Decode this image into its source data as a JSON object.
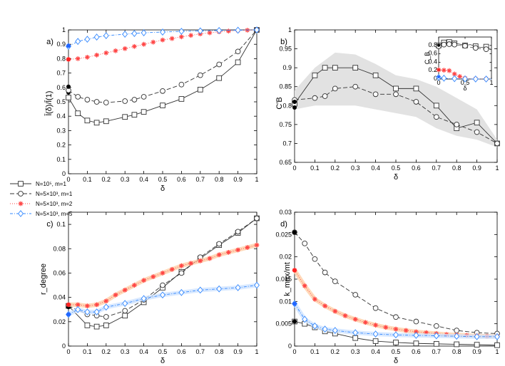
{
  "legend": [
    {
      "label": "N=10⁵, m=1",
      "color": "#333333",
      "dash": "",
      "marker": "square"
    },
    {
      "label": "N=5×10³, m=1",
      "color": "#333333",
      "dash": "6,3",
      "marker": "circle"
    },
    {
      "label": "N=5×10³, m=2",
      "color": "#ff4444",
      "dash": "1,2",
      "marker": "star"
    },
    {
      "label": "N=5×10³, m=5",
      "color": "#3388ff",
      "dash": "4,2,1,2",
      "marker": "diamond"
    }
  ],
  "chart_data": [
    {
      "type": "line",
      "panel_label": "a)",
      "xlabel": "δ",
      "ylabel": "l̄(δ)/l̄(1)",
      "xlim": [
        0,
        1
      ],
      "ylim": [
        0,
        1
      ],
      "xticks": [
        0,
        0.1,
        0.2,
        0.3,
        0.4,
        0.5,
        0.6,
        0.7,
        0.8,
        0.9,
        1
      ],
      "xticklabels": [
        "0",
        "0.1",
        "0.2",
        "0.3",
        "0.4",
        "0.5",
        "0.6",
        "0.7",
        "0.8",
        "0.9",
        "1"
      ],
      "yticks": [
        0,
        0.1,
        0.2,
        0.3,
        0.4,
        0.5,
        0.6,
        0.7,
        0.8,
        0.9,
        1
      ],
      "yticklabels": [
        "0",
        "0.1",
        "0.2",
        "0.3",
        "0.4",
        "0.5",
        "0.6",
        "0.7",
        "0.8",
        "0.9",
        "1"
      ],
      "series": [
        {
          "x": [
            0,
            0.05,
            0.1,
            0.15,
            0.2,
            0.3,
            0.35,
            0.4,
            0.5,
            0.6,
            0.7,
            0.8,
            0.9,
            1
          ],
          "y": [
            0.53,
            0.42,
            0.37,
            0.355,
            0.365,
            0.395,
            0.41,
            0.43,
            0.475,
            0.52,
            0.585,
            0.665,
            0.775,
            1.0
          ],
          "dots": [
            0.565
          ]
        },
        {
          "x": [
            0,
            0.05,
            0.1,
            0.15,
            0.2,
            0.3,
            0.35,
            0.4,
            0.5,
            0.6,
            0.7,
            0.8,
            0.9,
            1
          ],
          "y": [
            0.58,
            0.535,
            0.515,
            0.5,
            0.495,
            0.505,
            0.515,
            0.535,
            0.575,
            0.62,
            0.685,
            0.76,
            0.85,
            1.0
          ],
          "dots": [
            0.605
          ]
        },
        {
          "x": [
            0,
            0.05,
            0.1,
            0.15,
            0.2,
            0.25,
            0.3,
            0.35,
            0.4,
            0.45,
            0.5,
            0.55,
            0.6,
            0.65,
            0.7,
            0.75,
            0.8,
            0.85,
            0.9,
            0.95,
            1
          ],
          "y": [
            0.795,
            0.8,
            0.81,
            0.825,
            0.84,
            0.855,
            0.87,
            0.885,
            0.9,
            0.915,
            0.93,
            0.94,
            0.952,
            0.962,
            0.972,
            0.98,
            0.987,
            0.992,
            0.996,
            0.998,
            1.0
          ],
          "dots": [
            0.795
          ]
        },
        {
          "x": [
            0,
            0.05,
            0.1,
            0.15,
            0.2,
            0.3,
            0.35,
            0.4,
            0.5,
            0.6,
            0.7,
            0.8,
            0.9,
            1
          ],
          "y": [
            0.885,
            0.92,
            0.935,
            0.95,
            0.96,
            0.97,
            0.975,
            0.98,
            0.985,
            0.99,
            0.993,
            0.996,
            0.998,
            1.0
          ],
          "dots": [
            0.89
          ]
        }
      ]
    },
    {
      "type": "line",
      "panel_label": "b)",
      "xlabel": "δ",
      "ylabel": "C′B",
      "xlim": [
        0,
        1
      ],
      "ylim": [
        0.65,
        1
      ],
      "xticks": [
        0,
        0.1,
        0.2,
        0.3,
        0.4,
        0.5,
        0.6,
        0.7,
        0.8,
        0.9,
        1
      ],
      "xticklabels": [
        "0",
        "0.1",
        "0.2",
        "0.3",
        "0.4",
        "0.5",
        "0.6",
        "0.7",
        "0.8",
        "0.9",
        "1"
      ],
      "yticks": [
        0.65,
        0.7,
        0.75,
        0.8,
        0.85,
        0.9,
        0.95,
        1
      ],
      "yticklabels": [
        "0.65",
        "0.7",
        "0.75",
        "0.8",
        "0.85",
        "0.9",
        "0.95",
        "1"
      ],
      "band": {
        "x": [
          0,
          0.1,
          0.2,
          0.3,
          0.4,
          0.5,
          0.6,
          0.7,
          0.8,
          0.9,
          1
        ],
        "upper": [
          0.84,
          0.9,
          0.94,
          0.935,
          0.91,
          0.88,
          0.87,
          0.85,
          0.82,
          0.79,
          0.71
        ],
        "lower": [
          0.79,
          0.8,
          0.8,
          0.8,
          0.79,
          0.78,
          0.77,
          0.74,
          0.72,
          0.71,
          0.69
        ]
      },
      "series": [
        {
          "x": [
            0,
            0.1,
            0.15,
            0.2,
            0.3,
            0.4,
            0.5,
            0.6,
            0.7,
            0.8,
            0.9,
            1
          ],
          "y": [
            0.805,
            0.88,
            0.9,
            0.9,
            0.9,
            0.88,
            0.845,
            0.845,
            0.8,
            0.74,
            0.755,
            0.7
          ],
          "dots": [
            0.795
          ]
        },
        {
          "x": [
            0,
            0.1,
            0.15,
            0.2,
            0.3,
            0.4,
            0.5,
            0.6,
            0.7,
            0.8,
            0.9,
            1
          ],
          "y": [
            0.815,
            0.82,
            0.825,
            0.845,
            0.85,
            0.83,
            0.83,
            0.81,
            0.77,
            0.75,
            0.73,
            0.7
          ],
          "dots": [
            0.81
          ]
        }
      ],
      "inset": {
        "xlabel": "δ",
        "ylabel": "C_B",
        "xlim": [
          0,
          1
        ],
        "ylim": [
          0,
          1
        ],
        "xticks": [
          0,
          0.5,
          1
        ],
        "xticklabels": [
          "0",
          "0.5",
          "1"
        ],
        "yticks": [
          0,
          0.2,
          0.4,
          0.6,
          0.8
        ],
        "yticklabels": [
          "0",
          "0.2",
          "0.4",
          "0.6",
          "0.8"
        ],
        "series": [
          {
            "x": [
              0,
              0.05,
              0.1,
              0.15,
              0.2,
              0.25,
              0.3,
              0.4,
              0.5,
              0.6,
              0.7,
              0.8,
              0.9,
              1
            ],
            "y": [
              0.8,
              0.85,
              0.87,
              0.88,
              0.88,
              0.87,
              0.85,
              0.83,
              0.8,
              0.82,
              0.78,
              0.75,
              0.77,
              0.7
            ],
            "dots": [
              0.78
            ]
          },
          {
            "x": [
              0,
              0.05,
              0.1,
              0.15,
              0.2,
              0.25,
              0.3,
              0.4,
              0.5,
              0.6,
              0.7,
              0.8,
              0.9,
              1
            ],
            "y": [
              0.78,
              0.81,
              0.82,
              0.83,
              0.83,
              0.82,
              0.82,
              0.8,
              0.79,
              0.76,
              0.74,
              0.72,
              0.71,
              0.7
            ],
            "dots": [
              0.8
            ]
          },
          {
            "x": [
              0,
              0.05,
              0.1,
              0.15,
              0.2,
              0.25,
              0.3,
              0.35,
              0.4,
              0.45,
              0.5,
              0.6,
              0.7,
              0.8,
              0.9,
              1
            ],
            "y": [
              0.22,
              0.22,
              0.21,
              0.21,
              0.2,
              0.16,
              0.12,
              0.09,
              0.06,
              0.04,
              0.02,
              0.01,
              0.005,
              0.003,
              0.002,
              0.001
            ],
            "dots": [
              0.22
            ]
          },
          {
            "x": [
              0,
              0.05,
              0.1,
              0.2,
              0.3,
              0.4,
              0.5,
              0.6,
              0.7,
              0.8,
              0.9,
              1
            ],
            "y": [
              0.04,
              0.03,
              0.02,
              0.01,
              0.01,
              0.005,
              0.003,
              0.002,
              0.001,
              0.001,
              0.0,
              0.0
            ],
            "dots": [
              0.05
            ]
          }
        ]
      }
    },
    {
      "type": "line",
      "panel_label": "c)",
      "xlabel": "δ",
      "ylabel": "r_degree",
      "xlim": [
        0,
        1
      ],
      "ylim": [
        0,
        0.11
      ],
      "xticks": [
        0,
        0.1,
        0.2,
        0.3,
        0.4,
        0.5,
        0.6,
        0.7,
        0.8,
        0.9,
        1
      ],
      "xticklabels": [
        "0",
        "0.1",
        "0.2",
        "0.3",
        "0.4",
        "0.5",
        "0.6",
        "0.7",
        "0.8",
        "0.9",
        "1"
      ],
      "yticks": [
        0,
        0.02,
        0.04,
        0.06,
        0.08,
        0.1
      ],
      "yticklabels": [
        "0",
        "0.02",
        "0.04",
        "0.06",
        "0.08",
        "0.1"
      ],
      "series": [
        {
          "x": [
            0,
            0.1,
            0.15,
            0.2,
            0.3,
            0.4,
            0.5,
            0.6,
            0.7,
            0.8,
            0.9,
            1
          ],
          "y": [
            0.033,
            0.017,
            0.016,
            0.017,
            0.025,
            0.036,
            0.048,
            0.061,
            0.072,
            0.083,
            0.093,
            0.105
          ],
          "dots": [
            0.034
          ]
        },
        {
          "x": [
            0,
            0.1,
            0.15,
            0.2,
            0.3,
            0.4,
            0.5,
            0.6,
            0.7,
            0.8,
            0.9,
            1
          ],
          "y": [
            0.033,
            0.026,
            0.025,
            0.024,
            0.029,
            0.038,
            0.05,
            0.06,
            0.073,
            0.084,
            0.094,
            0.105
          ],
          "dots": [
            0.032
          ]
        },
        {
          "x": [
            0,
            0.05,
            0.1,
            0.15,
            0.2,
            0.25,
            0.3,
            0.35,
            0.4,
            0.45,
            0.5,
            0.55,
            0.6,
            0.65,
            0.7,
            0.75,
            0.8,
            0.85,
            0.9,
            0.95,
            1
          ],
          "y": [
            0.034,
            0.034,
            0.033,
            0.034,
            0.037,
            0.042,
            0.046,
            0.05,
            0.054,
            0.057,
            0.06,
            0.063,
            0.066,
            0.068,
            0.07,
            0.072,
            0.075,
            0.077,
            0.079,
            0.081,
            0.083
          ],
          "dots": [
            0.034
          ]
        },
        {
          "x": [
            0,
            0.05,
            0.1,
            0.15,
            0.2,
            0.3,
            0.4,
            0.5,
            0.6,
            0.7,
            0.8,
            0.9,
            1
          ],
          "y": [
            0.026,
            0.03,
            0.028,
            0.028,
            0.032,
            0.035,
            0.039,
            0.042,
            0.044,
            0.046,
            0.047,
            0.048,
            0.05
          ],
          "dots": [
            0.026
          ]
        }
      ]
    },
    {
      "type": "line",
      "panel_label": "d)",
      "xlabel": "δ",
      "ylabel": "k_max/mt",
      "xlim": [
        0,
        1
      ],
      "ylim": [
        0,
        0.03
      ],
      "xticks": [
        0,
        0.1,
        0.2,
        0.3,
        0.4,
        0.5,
        0.6,
        0.7,
        0.8,
        0.9,
        1
      ],
      "xticklabels": [
        "0",
        "0.1",
        "0.2",
        "0.3",
        "0.4",
        "0.5",
        "0.6",
        "0.7",
        "0.8",
        "0.9",
        "1"
      ],
      "yticks": [
        0,
        0.005,
        0.01,
        0.015,
        0.02,
        0.025,
        0.03
      ],
      "yticklabels": [
        "0",
        "0.005",
        "0.01",
        "0.015",
        "0.02",
        "0.025",
        "0.03"
      ],
      "series": [
        {
          "x": [
            0,
            0.05,
            0.1,
            0.15,
            0.2,
            0.3,
            0.4,
            0.5,
            0.6,
            0.7,
            0.8,
            0.9,
            1
          ],
          "y": [
            0.0055,
            0.005,
            0.0042,
            0.0033,
            0.0028,
            0.0018,
            0.0011,
            0.0008,
            0.0006,
            0.0005,
            0.0004,
            0.0003,
            0.0002
          ],
          "dots": [
            0.0055
          ]
        },
        {
          "x": [
            0,
            0.05,
            0.1,
            0.15,
            0.2,
            0.3,
            0.4,
            0.5,
            0.6,
            0.7,
            0.8,
            0.9,
            1
          ],
          "y": [
            0.0255,
            0.023,
            0.0195,
            0.0165,
            0.0145,
            0.0115,
            0.0085,
            0.0065,
            0.0055,
            0.0045,
            0.0035,
            0.003,
            0.0028
          ],
          "dots": [
            0.0255
          ]
        },
        {
          "x": [
            0,
            0.05,
            0.1,
            0.15,
            0.2,
            0.25,
            0.3,
            0.35,
            0.4,
            0.45,
            0.5,
            0.55,
            0.6,
            0.65,
            0.7,
            0.75,
            0.8,
            0.85,
            0.9,
            0.95,
            1
          ],
          "y": [
            0.017,
            0.0135,
            0.0105,
            0.009,
            0.0078,
            0.0068,
            0.006,
            0.0053,
            0.0047,
            0.0042,
            0.0038,
            0.0035,
            0.0032,
            0.003,
            0.0028,
            0.0026,
            0.0025,
            0.0024,
            0.0023,
            0.0022,
            0.0022
          ],
          "dots": [
            0.017
          ]
        },
        {
          "x": [
            0,
            0.05,
            0.1,
            0.15,
            0.2,
            0.3,
            0.4,
            0.5,
            0.6,
            0.7,
            0.8,
            0.9,
            1
          ],
          "y": [
            0.0095,
            0.006,
            0.0045,
            0.0038,
            0.0035,
            0.003,
            0.0027,
            0.0025,
            0.0024,
            0.0023,
            0.0022,
            0.0021,
            0.0021
          ],
          "dots": [
            0.0095
          ]
        }
      ]
    }
  ]
}
